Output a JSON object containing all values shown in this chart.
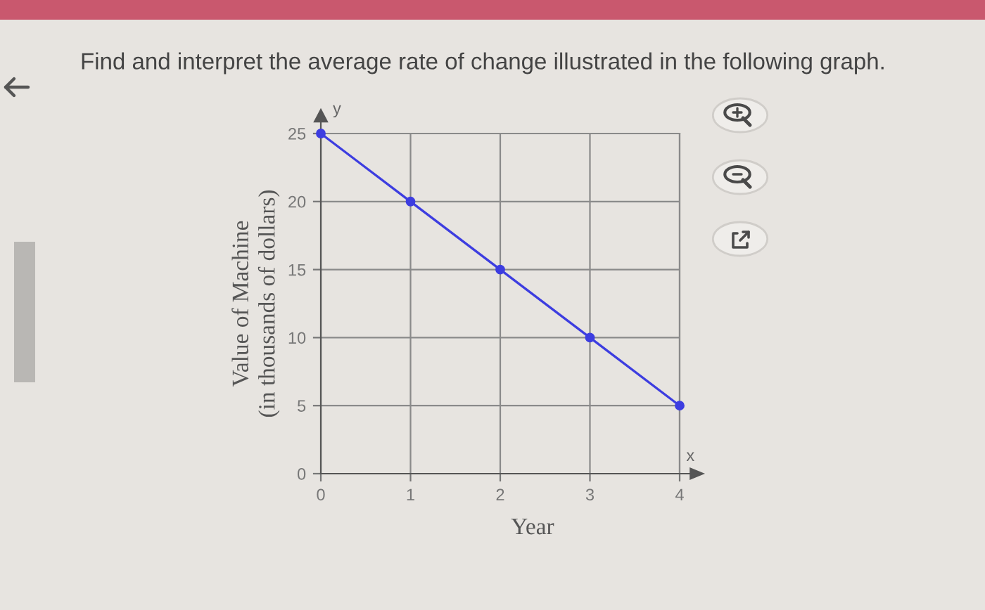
{
  "chart_data": {
    "type": "line",
    "title": "Find and interpret the average rate of change illustrated in the following graph.",
    "xlabel": "Year",
    "ylabel": "Value of Machine\n(in thousands of dollars)",
    "annotations": [
      "x",
      "y"
    ],
    "x": [
      0,
      1,
      2,
      3,
      4
    ],
    "series": [
      {
        "color": "#3d3de0",
        "values": [
          25,
          20,
          15,
          10,
          5
        ]
      }
    ],
    "xlim": [
      0,
      4
    ],
    "ylim": [
      0,
      25
    ],
    "xticks": [
      0,
      1,
      2,
      3,
      4
    ],
    "yticks": [
      0,
      5,
      10,
      15,
      20,
      25
    ],
    "grid": true,
    "marker": "circle",
    "line_style": "solid"
  }
}
